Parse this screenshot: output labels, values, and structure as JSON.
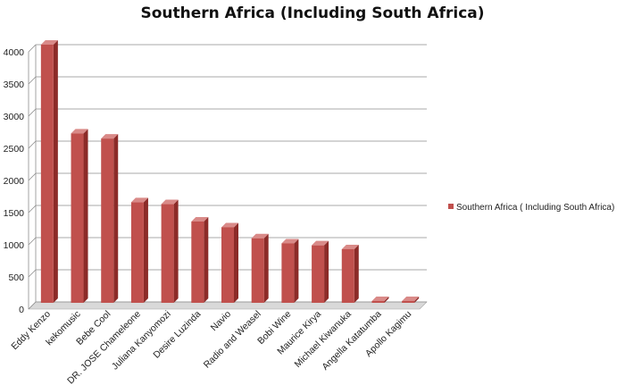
{
  "chart_data": {
    "type": "bar",
    "title": "Southern Africa (Including South Africa)",
    "xlabel": "",
    "ylabel": "",
    "ylim": [
      0,
      4000
    ],
    "yticks": [
      0,
      500,
      1000,
      1500,
      2000,
      2500,
      3000,
      3500,
      4000
    ],
    "grid": true,
    "legend_position": "right",
    "categories": [
      "Eddy Kenzo",
      "kekomusic",
      "Bebe Cool",
      "DR. JOSE Chameleone",
      "Juliana Kanyomozi",
      "Desire Luzinda",
      "Navio",
      "Radio and Weasel",
      "Bobi Wine",
      "Maurice Kirya",
      "Michael Kiwanuka",
      "Angella Katatumba",
      "Apollo Kagimu"
    ],
    "series": [
      {
        "name": "Southern Africa ( Including South Africa)",
        "values": [
          4000,
          2620,
          2540,
          1550,
          1520,
          1250,
          1160,
          990,
          910,
          880,
          820,
          10,
          10
        ]
      }
    ],
    "colors": {
      "bar_front": "#c0504d",
      "bar_side": "#8c2b28",
      "bar_top": "#d98a88",
      "grid": "#8c8c8c",
      "floor": "#d9d9d9"
    }
  }
}
